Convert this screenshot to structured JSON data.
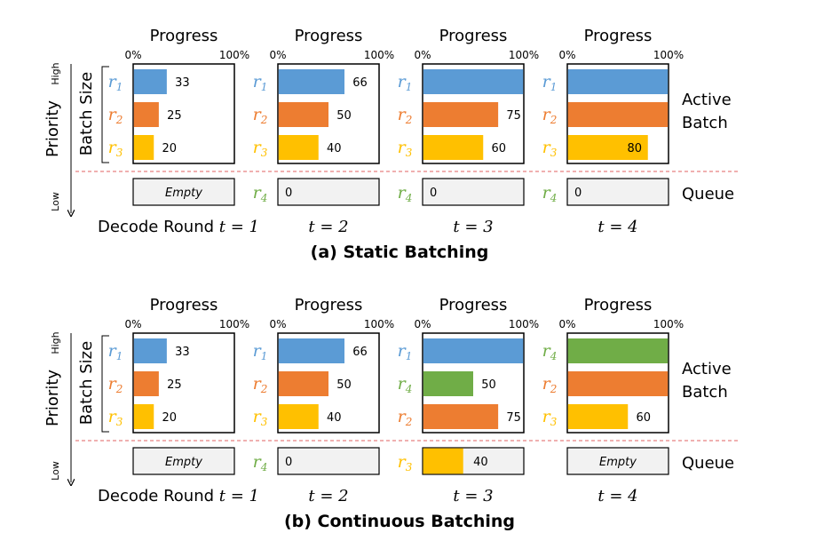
{
  "colors": {
    "r1": "#5b9bd5",
    "r2": "#ed7d31",
    "r3": "#ffc000",
    "r4": "#70ad47",
    "queue_fill": "#f2f2f2",
    "separator": "#e06060"
  },
  "axis_labels": {
    "left_top": "High",
    "left_bottom": "Low",
    "priority": "Priority",
    "batch_size": "Batch Size",
    "active_batch_line1": "Active",
    "active_batch_line2": "Batch",
    "queue": "Queue",
    "progress": "Progress",
    "tick_0": "0%",
    "tick_100": "100%"
  },
  "sections": [
    {
      "caption": "(a) Static Batching",
      "rounds": [
        {
          "label": "Decode Round t = 1",
          "active": [
            {
              "req": "r1",
              "sub": "1",
              "value": 33,
              "color": "r1"
            },
            {
              "req": "r2",
              "sub": "2",
              "value": 25,
              "color": "r2"
            },
            {
              "req": "r3",
              "sub": "3",
              "value": 20,
              "color": "r3"
            }
          ],
          "queue": {
            "empty": true,
            "text": "Empty"
          }
        },
        {
          "label": "t = 2",
          "active": [
            {
              "req": "r1",
              "sub": "1",
              "value": 66,
              "color": "r1"
            },
            {
              "req": "r2",
              "sub": "2",
              "value": 50,
              "color": "r2"
            },
            {
              "req": "r3",
              "sub": "3",
              "value": 40,
              "color": "r3"
            }
          ],
          "queue": {
            "empty": false,
            "req": "r4",
            "sub": "4",
            "value": 0,
            "color": "r4"
          }
        },
        {
          "label": "t = 3",
          "active": [
            {
              "req": "r1",
              "sub": "1",
              "value": 100,
              "color": "r1"
            },
            {
              "req": "r2",
              "sub": "2",
              "value": 75,
              "color": "r2"
            },
            {
              "req": "r3",
              "sub": "3",
              "value": 60,
              "color": "r3"
            }
          ],
          "queue": {
            "empty": false,
            "req": "r4",
            "sub": "4",
            "value": 0,
            "color": "r4"
          }
        },
        {
          "label": "t = 4",
          "active": [
            {
              "req": "r1",
              "sub": "1",
              "value": 100,
              "color": "r1"
            },
            {
              "req": "r2",
              "sub": "2",
              "value": 100,
              "color": "r2"
            },
            {
              "req": "r3",
              "sub": "3",
              "value": 80,
              "color": "r3",
              "inside": true
            }
          ],
          "queue": {
            "empty": false,
            "req": "r4",
            "sub": "4",
            "value": 0,
            "color": "r4"
          }
        }
      ]
    },
    {
      "caption": "(b) Continuous Batching",
      "rounds": [
        {
          "label": "Decode Round t = 1",
          "active": [
            {
              "req": "r1",
              "sub": "1",
              "value": 33,
              "color": "r1"
            },
            {
              "req": "r2",
              "sub": "2",
              "value": 25,
              "color": "r2"
            },
            {
              "req": "r3",
              "sub": "3",
              "value": 20,
              "color": "r3"
            }
          ],
          "queue": {
            "empty": true,
            "text": "Empty"
          }
        },
        {
          "label": "t = 2",
          "active": [
            {
              "req": "r1",
              "sub": "1",
              "value": 66,
              "color": "r1"
            },
            {
              "req": "r2",
              "sub": "2",
              "value": 50,
              "color": "r2"
            },
            {
              "req": "r3",
              "sub": "3",
              "value": 40,
              "color": "r3"
            }
          ],
          "queue": {
            "empty": false,
            "req": "r4",
            "sub": "4",
            "value": 0,
            "color": "r4"
          }
        },
        {
          "label": "t = 3",
          "active": [
            {
              "req": "r1",
              "sub": "1",
              "value": 100,
              "color": "r1"
            },
            {
              "req": "r4",
              "sub": "4",
              "value": 50,
              "color": "r4"
            },
            {
              "req": "r2",
              "sub": "2",
              "value": 75,
              "color": "r2"
            }
          ],
          "queue": {
            "empty": false,
            "req": "r3",
            "sub": "3",
            "value": 40,
            "color": "r3"
          }
        },
        {
          "label": "t = 4",
          "active": [
            {
              "req": "r4",
              "sub": "4",
              "value": 100,
              "color": "r4"
            },
            {
              "req": "r2",
              "sub": "2",
              "value": 100,
              "color": "r2"
            },
            {
              "req": "r3",
              "sub": "3",
              "value": 60,
              "color": "r3"
            }
          ],
          "queue": {
            "empty": true,
            "text": "Empty"
          }
        }
      ]
    }
  ]
}
